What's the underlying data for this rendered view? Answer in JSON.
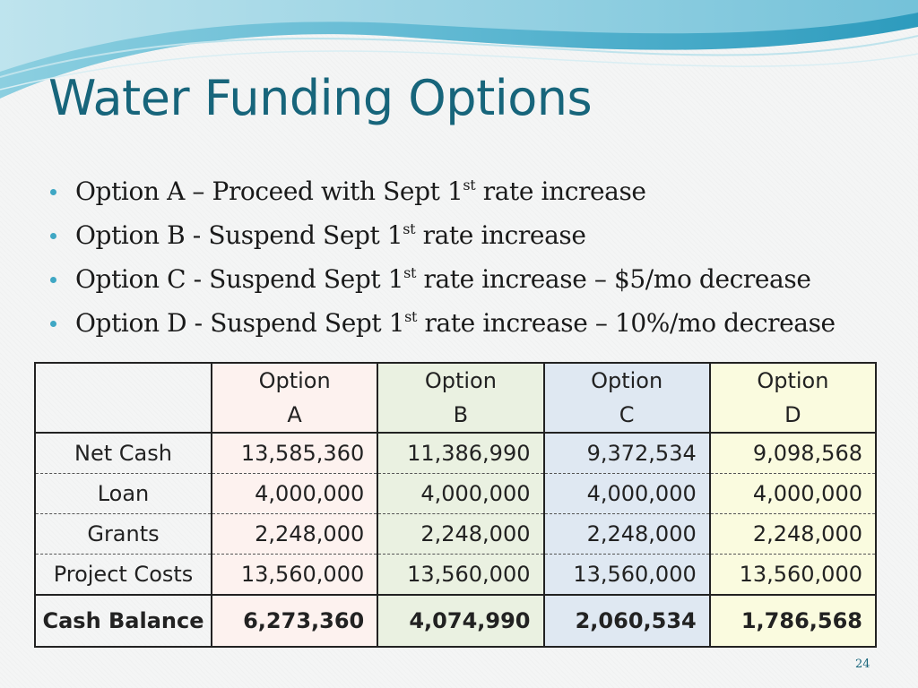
{
  "slide": {
    "title": "Water Funding Options",
    "page_number": "24"
  },
  "bullets": [
    {
      "before": "Option A – Proceed with Sept 1",
      "sup": "st",
      "after": " rate increase"
    },
    {
      "before": "Option B - Suspend Sept 1",
      "sup": "st",
      "after": " rate increase"
    },
    {
      "before": "Option C - Suspend Sept 1",
      "sup": "st",
      "after": " rate increase – $5/mo decrease"
    },
    {
      "before": "Option D - Suspend Sept 1",
      "sup": "st",
      "after": " rate increase – 10%/mo decrease"
    }
  ],
  "table": {
    "headers": [
      {
        "line1": "Option",
        "line2": "A"
      },
      {
        "line1": "Option",
        "line2": "B"
      },
      {
        "line1": "Option",
        "line2": "C"
      },
      {
        "line1": "Option",
        "line2": "D"
      }
    ],
    "rows": [
      {
        "label": "Net Cash",
        "values": [
          "13,585,360",
          "11,386,990",
          "9,372,534",
          "9,098,568"
        ]
      },
      {
        "label": "Loan",
        "values": [
          "4,000,000",
          "4,000,000",
          "4,000,000",
          "4,000,000"
        ]
      },
      {
        "label": "Grants",
        "values": [
          "2,248,000",
          "2,248,000",
          "2,248,000",
          "2,248,000"
        ]
      },
      {
        "label": "Project Costs",
        "values": [
          "13,560,000",
          "13,560,000",
          "13,560,000",
          "13,560,000"
        ]
      }
    ],
    "total": {
      "label": "Cash Balance",
      "values": [
        "6,273,360",
        "4,074,990",
        "2,060,534",
        "1,786,568"
      ]
    }
  },
  "colors": {
    "title": "#17657b",
    "bullet_dot": "#3fa7c4",
    "option_a_bg": "#fdf2ef",
    "option_b_bg": "#eaf1e1",
    "option_c_bg": "#dfe8f2",
    "option_d_bg": "#fafbdf"
  }
}
